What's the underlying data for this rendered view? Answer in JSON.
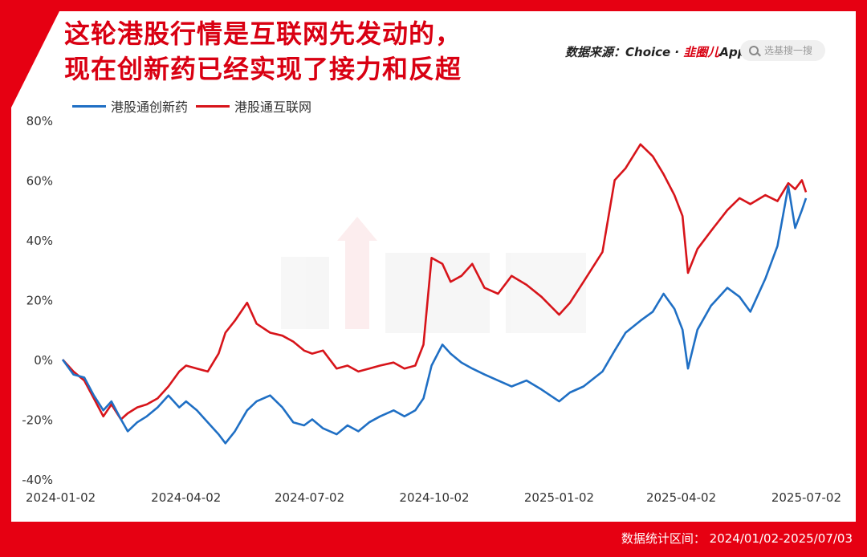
{
  "title_lines": [
    "这轮港股行情是互联网先发动的，",
    "现在创新药已经实现了接力和反超"
  ],
  "source": {
    "prefix": "数据来源：Choice · ",
    "brand": "韭圈儿",
    "suffix": "App"
  },
  "search": {
    "placeholder": "选基搜一搜"
  },
  "footer": "数据统计区间： 2024/01/02-2025/07/03",
  "colors": {
    "frame": "#e60012",
    "pharma": "#1f6fc4",
    "internet": "#d7141a"
  },
  "chart_data": {
    "type": "line",
    "x_tick_labels": [
      "2024-01-02",
      "2024-04-02",
      "2024-07-02",
      "2024-10-02",
      "2025-01-02",
      "2025-04-02",
      "2025-07-02"
    ],
    "x_range": [
      "2024-01-02",
      "2025-07-03"
    ],
    "y_ticks": [
      -40,
      -20,
      0,
      20,
      40,
      60,
      80
    ],
    "y_tick_labels": [
      "-40%",
      "-20%",
      "0%",
      "20%",
      "40%",
      "60%",
      "80%"
    ],
    "ylim": [
      -40,
      80
    ],
    "grid": false,
    "legend_position": "top-left",
    "series": [
      {
        "name": "港股通创新药",
        "color": "#1f6fc4",
        "points": [
          [
            "2024-01-02",
            0
          ],
          [
            "2024-01-10",
            -5
          ],
          [
            "2024-01-18",
            -6
          ],
          [
            "2024-01-25",
            -12
          ],
          [
            "2024-02-01",
            -17
          ],
          [
            "2024-02-07",
            -14
          ],
          [
            "2024-02-14",
            -20
          ],
          [
            "2024-02-19",
            -24
          ],
          [
            "2024-02-26",
            -21
          ],
          [
            "2024-03-04",
            -19
          ],
          [
            "2024-03-12",
            -16
          ],
          [
            "2024-03-20",
            -12
          ],
          [
            "2024-03-28",
            -16
          ],
          [
            "2024-04-02",
            -14
          ],
          [
            "2024-04-10",
            -17
          ],
          [
            "2024-04-18",
            -21
          ],
          [
            "2024-04-26",
            -25
          ],
          [
            "2024-05-01",
            -28
          ],
          [
            "2024-05-08",
            -24
          ],
          [
            "2024-05-17",
            -17
          ],
          [
            "2024-05-24",
            -14
          ],
          [
            "2024-06-03",
            -12
          ],
          [
            "2024-06-12",
            -16
          ],
          [
            "2024-06-20",
            -21
          ],
          [
            "2024-06-28",
            -22
          ],
          [
            "2024-07-04",
            -20
          ],
          [
            "2024-07-12",
            -23
          ],
          [
            "2024-07-22",
            -25
          ],
          [
            "2024-07-30",
            -22
          ],
          [
            "2024-08-07",
            -24
          ],
          [
            "2024-08-15",
            -21
          ],
          [
            "2024-08-23",
            -19
          ],
          [
            "2024-09-02",
            -17
          ],
          [
            "2024-09-10",
            -19
          ],
          [
            "2024-09-18",
            -17
          ],
          [
            "2024-09-24",
            -13
          ],
          [
            "2024-09-30",
            -2
          ],
          [
            "2024-10-08",
            5
          ],
          [
            "2024-10-14",
            2
          ],
          [
            "2024-10-22",
            -1
          ],
          [
            "2024-10-30",
            -3
          ],
          [
            "2024-11-08",
            -5
          ],
          [
            "2024-11-18",
            -7
          ],
          [
            "2024-11-28",
            -9
          ],
          [
            "2024-12-09",
            -7
          ],
          [
            "2024-12-20",
            -10
          ],
          [
            "2025-01-02",
            -14
          ],
          [
            "2025-01-10",
            -11
          ],
          [
            "2025-01-20",
            -9
          ],
          [
            "2025-02-03",
            -4
          ],
          [
            "2025-02-12",
            3
          ],
          [
            "2025-02-20",
            9
          ],
          [
            "2025-03-03",
            13
          ],
          [
            "2025-03-12",
            16
          ],
          [
            "2025-03-20",
            22
          ],
          [
            "2025-03-28",
            17
          ],
          [
            "2025-04-03",
            10
          ],
          [
            "2025-04-07",
            -3
          ],
          [
            "2025-04-14",
            10
          ],
          [
            "2025-04-24",
            18
          ],
          [
            "2025-05-06",
            24
          ],
          [
            "2025-05-15",
            21
          ],
          [
            "2025-05-23",
            16
          ],
          [
            "2025-06-03",
            27
          ],
          [
            "2025-06-12",
            38
          ],
          [
            "2025-06-20",
            58
          ],
          [
            "2025-06-25",
            44
          ],
          [
            "2025-06-30",
            50
          ],
          [
            "2025-07-03",
            54
          ]
        ]
      },
      {
        "name": "港股通互联网",
        "color": "#d7141a",
        "points": [
          [
            "2024-01-02",
            0
          ],
          [
            "2024-01-10",
            -4
          ],
          [
            "2024-01-18",
            -7
          ],
          [
            "2024-01-25",
            -13
          ],
          [
            "2024-02-01",
            -19
          ],
          [
            "2024-02-07",
            -15
          ],
          [
            "2024-02-14",
            -20
          ],
          [
            "2024-02-19",
            -18
          ],
          [
            "2024-02-26",
            -16
          ],
          [
            "2024-03-04",
            -15
          ],
          [
            "2024-03-12",
            -13
          ],
          [
            "2024-03-20",
            -9
          ],
          [
            "2024-03-28",
            -4
          ],
          [
            "2024-04-02",
            -2
          ],
          [
            "2024-04-10",
            -3
          ],
          [
            "2024-04-18",
            -4
          ],
          [
            "2024-04-26",
            2
          ],
          [
            "2024-05-01",
            9
          ],
          [
            "2024-05-08",
            13
          ],
          [
            "2024-05-17",
            19
          ],
          [
            "2024-05-24",
            12
          ],
          [
            "2024-06-03",
            9
          ],
          [
            "2024-06-12",
            8
          ],
          [
            "2024-06-20",
            6
          ],
          [
            "2024-06-28",
            3
          ],
          [
            "2024-07-04",
            2
          ],
          [
            "2024-07-12",
            3
          ],
          [
            "2024-07-22",
            -3
          ],
          [
            "2024-07-30",
            -2
          ],
          [
            "2024-08-07",
            -4
          ],
          [
            "2024-08-15",
            -3
          ],
          [
            "2024-08-23",
            -2
          ],
          [
            "2024-09-02",
            -1
          ],
          [
            "2024-09-10",
            -3
          ],
          [
            "2024-09-18",
            -2
          ],
          [
            "2024-09-24",
            5
          ],
          [
            "2024-09-30",
            34
          ],
          [
            "2024-10-08",
            32
          ],
          [
            "2024-10-14",
            26
          ],
          [
            "2024-10-22",
            28
          ],
          [
            "2024-10-30",
            32
          ],
          [
            "2024-11-08",
            24
          ],
          [
            "2024-11-18",
            22
          ],
          [
            "2024-11-28",
            28
          ],
          [
            "2024-12-09",
            25
          ],
          [
            "2024-12-20",
            21
          ],
          [
            "2025-01-02",
            15
          ],
          [
            "2025-01-10",
            19
          ],
          [
            "2025-01-20",
            26
          ],
          [
            "2025-02-03",
            36
          ],
          [
            "2025-02-12",
            60
          ],
          [
            "2025-02-20",
            64
          ],
          [
            "2025-03-03",
            72
          ],
          [
            "2025-03-12",
            68
          ],
          [
            "2025-03-20",
            62
          ],
          [
            "2025-03-28",
            55
          ],
          [
            "2025-04-03",
            48
          ],
          [
            "2025-04-07",
            29
          ],
          [
            "2025-04-14",
            37
          ],
          [
            "2025-04-24",
            43
          ],
          [
            "2025-05-06",
            50
          ],
          [
            "2025-05-15",
            54
          ],
          [
            "2025-05-23",
            52
          ],
          [
            "2025-06-03",
            55
          ],
          [
            "2025-06-12",
            53
          ],
          [
            "2025-06-20",
            59
          ],
          [
            "2025-06-25",
            57
          ],
          [
            "2025-06-30",
            60
          ],
          [
            "2025-07-03",
            56
          ]
        ]
      }
    ]
  }
}
